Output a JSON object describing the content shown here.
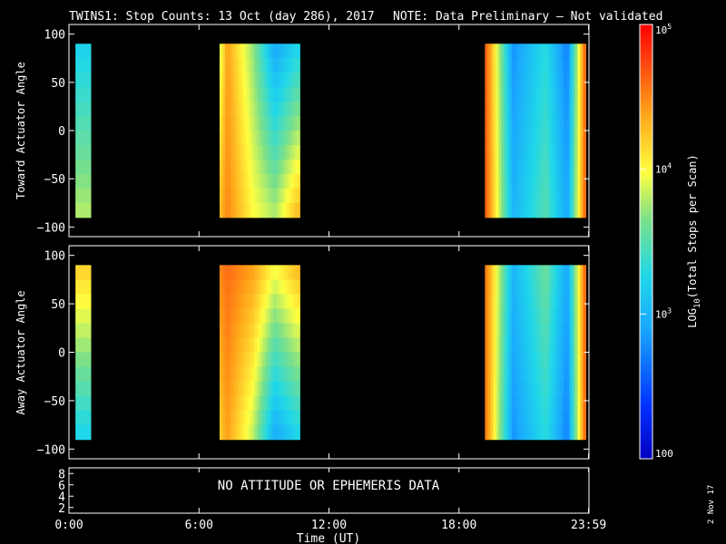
{
  "header": {
    "title": "TWINS1: Stop Counts: 13 Oct (day 286), 2017",
    "note": "NOTE: Data Preliminary – Not validated",
    "note_color": "#ff2020"
  },
  "footer": {
    "date_stamp": "2 Nov 17"
  },
  "chart_data": [
    {
      "type": "heatmap",
      "panel": "toward",
      "ylabel": "Toward Actuator Angle",
      "xlim_hours": [
        0,
        24
      ],
      "ylim": [
        -110,
        110
      ],
      "yticks": [
        "100",
        "50",
        "0",
        "−50",
        "−100"
      ],
      "ytick_values": [
        100,
        50,
        0,
        -50,
        -100
      ],
      "data_angle_range": [
        -90,
        90
      ],
      "intervals_hours": [
        [
          0.3,
          1.0
        ],
        [
          6.95,
          10.65
        ],
        [
          19.2,
          23.85
        ]
      ],
      "log10_counts_profile": [
        {
          "hour": 0.3,
          "top": 3.2,
          "bottom": 3.8
        },
        {
          "hour": 7.0,
          "top": 3.9,
          "bottom": 4.3
        },
        {
          "hour": 7.3,
          "top": 4.4,
          "bottom": 4.5
        },
        {
          "hour": 8.5,
          "top": 3.7,
          "bottom": 4.0
        },
        {
          "hour": 9.5,
          "top": 2.9,
          "bottom": 3.8
        },
        {
          "hour": 10.5,
          "top": 3.2,
          "bottom": 4.3
        },
        {
          "hour": 19.3,
          "top": 4.6,
          "bottom": 4.6
        },
        {
          "hour": 20.5,
          "top": 2.8,
          "bottom": 3.0
        },
        {
          "hour": 22.0,
          "top": 3.3,
          "bottom": 3.5
        },
        {
          "hour": 23.0,
          "top": 2.7,
          "bottom": 2.9
        },
        {
          "hour": 23.8,
          "top": 4.6,
          "bottom": 4.6
        }
      ]
    },
    {
      "type": "heatmap",
      "panel": "away",
      "ylabel": "Away Actuator Angle",
      "xlim_hours": [
        0,
        24
      ],
      "ylim": [
        -110,
        110
      ],
      "yticks": [
        "100",
        "50",
        "0",
        "−50",
        "−100"
      ],
      "ytick_values": [
        100,
        50,
        0,
        -50,
        -100
      ],
      "data_angle_range": [
        -90,
        90
      ],
      "intervals_hours": [
        [
          0.3,
          1.0
        ],
        [
          6.95,
          10.65
        ],
        [
          19.2,
          23.85
        ]
      ],
      "log10_counts_profile": [
        {
          "hour": 0.3,
          "top": 4.2,
          "bottom": 3.2
        },
        {
          "hour": 7.0,
          "top": 4.5,
          "bottom": 4.2
        },
        {
          "hour": 7.3,
          "top": 4.6,
          "bottom": 4.4
        },
        {
          "hour": 8.5,
          "top": 4.4,
          "bottom": 3.8
        },
        {
          "hour": 9.5,
          "top": 4.0,
          "bottom": 2.9
        },
        {
          "hour": 10.5,
          "top": 4.3,
          "bottom": 3.2
        },
        {
          "hour": 19.3,
          "top": 4.5,
          "bottom": 4.5
        },
        {
          "hour": 20.5,
          "top": 3.0,
          "bottom": 2.8
        },
        {
          "hour": 22.0,
          "top": 3.6,
          "bottom": 3.3
        },
        {
          "hour": 23.0,
          "top": 2.9,
          "bottom": 2.7
        },
        {
          "hour": 23.8,
          "top": 4.6,
          "bottom": 4.6
        }
      ]
    },
    {
      "type": "table",
      "panel": "ephemeris",
      "yticks": [
        "8",
        "6",
        "4",
        "2"
      ],
      "ytick_values": [
        8,
        6,
        4,
        2
      ],
      "ylim": [
        1,
        9
      ],
      "message": "NO ATTITUDE OR EPHEMERIS DATA",
      "xticks": [
        "0:00",
        "6:00",
        "12:00",
        "18:00",
        "23:59"
      ],
      "xtick_hours": [
        0,
        6,
        12,
        18,
        23.983
      ],
      "xlabel": "Time (UT)"
    }
  ],
  "colorbar": {
    "label_parts": [
      "LOG",
      "10",
      "(Total Stops per Scan)"
    ],
    "log_range": [
      2,
      5
    ],
    "ticks": [
      {
        "log": 5,
        "base": "10",
        "exp": "5"
      },
      {
        "log": 4,
        "base": "10",
        "exp": "4"
      },
      {
        "log": 3,
        "base": "10",
        "exp": "3"
      },
      {
        "log": 2,
        "base": "100",
        "exp": ""
      }
    ]
  }
}
